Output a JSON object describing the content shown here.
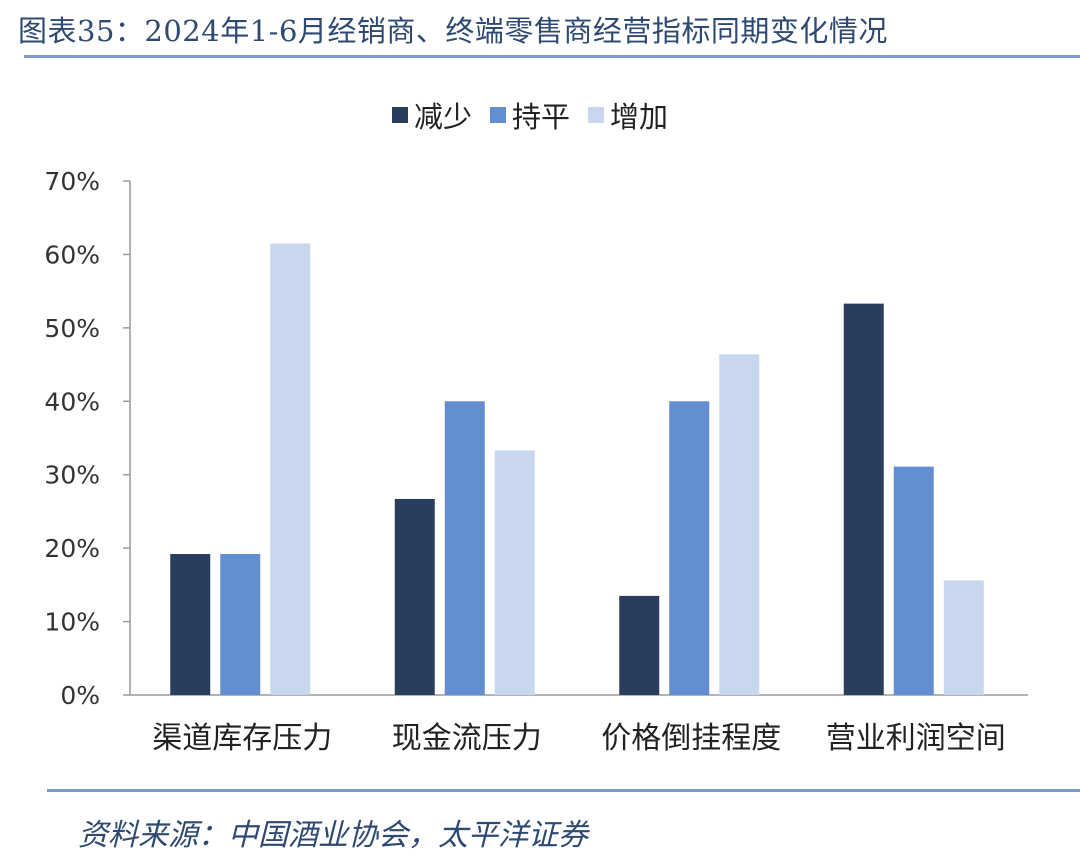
{
  "title": "图表35：2024年1-6月经销商、终端零售商经营指标同期变化情况",
  "source": "资料来源：中国酒业协会，太平洋证券",
  "colors": {
    "decrease": "#2b3d5c",
    "flat": "#638ed1",
    "increase": "#c8d7ee",
    "rule": "#7c9bc8",
    "title": "#2e4a73"
  },
  "chart_data": {
    "type": "bar",
    "categories": [
      "渠道库存压力",
      "现金流压力",
      "价格倒挂程度",
      "营业利润空间"
    ],
    "series": [
      {
        "name": "减少",
        "values": [
          19.2,
          26.7,
          13.5,
          53.3
        ],
        "color": "#2b3d5c"
      },
      {
        "name": "持平",
        "values": [
          19.2,
          40.0,
          40.0,
          31.1
        ],
        "color": "#638ed1"
      },
      {
        "name": "增加",
        "values": [
          61.5,
          33.3,
          46.4,
          15.6
        ],
        "color": "#c8d7ee"
      }
    ],
    "ylim": [
      0,
      70
    ],
    "yticks": [
      "0%",
      "10%",
      "20%",
      "30%",
      "40%",
      "50%",
      "60%",
      "70%"
    ],
    "legend_position": "top-center",
    "grid": false
  }
}
